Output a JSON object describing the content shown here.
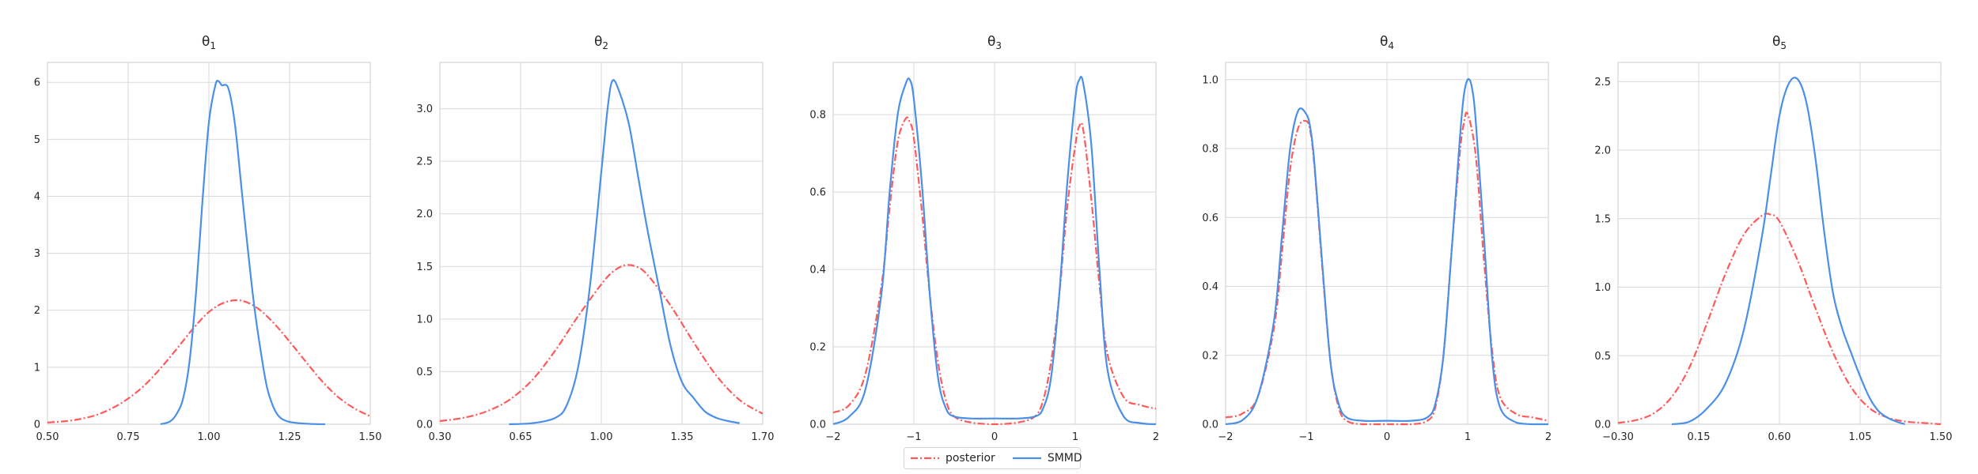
{
  "legend": {
    "entries": [
      {
        "label": "posterior",
        "color": "#ff5a5a",
        "dash": "dashdot"
      },
      {
        "label": "SMMD",
        "color": "#4a8fe8",
        "dash": "solid"
      }
    ]
  },
  "chart_data": [
    {
      "type": "line",
      "title": "θ1",
      "title_base": "θ",
      "title_sub": "1",
      "xlim": [
        0.5,
        1.5
      ],
      "ylim": [
        0,
        6.35
      ],
      "xticks": [
        0.5,
        0.75,
        1.0,
        1.25,
        1.5
      ],
      "xtick_labels": [
        "0.50",
        "0.75",
        "1.00",
        "1.25",
        "1.50"
      ],
      "yticks": [
        0,
        1,
        2,
        3,
        4,
        5,
        6
      ],
      "ytick_labels": [
        "0",
        "1",
        "2",
        "3",
        "4",
        "5",
        "6"
      ],
      "grid": true,
      "series": [
        {
          "name": "posterior",
          "color": "#ff5a5a",
          "dash": "dashdot",
          "x": [
            0.5,
            0.55,
            0.6,
            0.65,
            0.7,
            0.75,
            0.8,
            0.85,
            0.9,
            0.95,
            1.0,
            1.05,
            1.1,
            1.15,
            1.2,
            1.25,
            1.3,
            1.35,
            1.4,
            1.45,
            1.5
          ],
          "y": [
            0.03,
            0.05,
            0.09,
            0.16,
            0.28,
            0.45,
            0.68,
            0.98,
            1.32,
            1.67,
            1.97,
            2.14,
            2.17,
            2.04,
            1.78,
            1.45,
            1.1,
            0.76,
            0.48,
            0.28,
            0.14
          ]
        },
        {
          "name": "SMMD",
          "color": "#4a8fe8",
          "dash": "solid",
          "x": [
            0.85,
            0.88,
            0.9,
            0.92,
            0.94,
            0.96,
            0.98,
            1.0,
            1.02,
            1.03,
            1.04,
            1.06,
            1.08,
            1.1,
            1.12,
            1.14,
            1.16,
            1.18,
            1.2,
            1.22,
            1.25,
            1.3,
            1.36
          ],
          "y": [
            0.0,
            0.05,
            0.18,
            0.45,
            1.1,
            2.3,
            3.9,
            5.3,
            5.95,
            6.02,
            5.95,
            5.9,
            5.3,
            4.2,
            3.1,
            2.1,
            1.3,
            0.65,
            0.3,
            0.12,
            0.04,
            0.01,
            0.0
          ]
        }
      ]
    },
    {
      "type": "line",
      "title": "θ2",
      "title_base": "θ",
      "title_sub": "2",
      "xlim": [
        0.3,
        1.7
      ],
      "ylim": [
        0,
        3.44
      ],
      "xticks": [
        0.3,
        0.65,
        1.0,
        1.35,
        1.7
      ],
      "xtick_labels": [
        "0.30",
        "0.65",
        "1.00",
        "1.35",
        "1.70"
      ],
      "yticks": [
        0,
        0.5,
        1.0,
        1.5,
        2.0,
        2.5,
        3.0
      ],
      "ytick_labels": [
        "0.0",
        "0.5",
        "1.0",
        "1.5",
        "2.0",
        "2.5",
        "3.0"
      ],
      "grid": true,
      "series": [
        {
          "name": "posterior",
          "color": "#ff5a5a",
          "dash": "dashdot",
          "x": [
            0.3,
            0.4,
            0.5,
            0.6,
            0.7,
            0.8,
            0.9,
            1.0,
            1.05,
            1.1,
            1.15,
            1.2,
            1.3,
            1.4,
            1.5,
            1.6,
            1.7
          ],
          "y": [
            0.03,
            0.06,
            0.12,
            0.23,
            0.42,
            0.7,
            1.03,
            1.33,
            1.45,
            1.51,
            1.5,
            1.42,
            1.13,
            0.78,
            0.46,
            0.23,
            0.1
          ]
        },
        {
          "name": "SMMD",
          "color": "#4a8fe8",
          "dash": "solid",
          "x": [
            0.6,
            0.7,
            0.8,
            0.85,
            0.9,
            0.95,
            1.0,
            1.03,
            1.05,
            1.08,
            1.12,
            1.16,
            1.2,
            1.25,
            1.3,
            1.35,
            1.4,
            1.45,
            1.5,
            1.55,
            1.6
          ],
          "y": [
            0.0,
            0.01,
            0.06,
            0.18,
            0.55,
            1.3,
            2.4,
            3.05,
            3.27,
            3.15,
            2.85,
            2.35,
            1.85,
            1.3,
            0.75,
            0.4,
            0.25,
            0.12,
            0.06,
            0.03,
            0.01
          ]
        }
      ]
    },
    {
      "type": "line",
      "title": "θ3",
      "title_base": "θ",
      "title_sub": "3",
      "xlim": [
        -2,
        2
      ],
      "ylim": [
        0,
        0.935
      ],
      "xticks": [
        -2,
        -1,
        0,
        1,
        2
      ],
      "xtick_labels": [
        "−2",
        "−1",
        "0",
        "1",
        "2"
      ],
      "yticks": [
        0,
        0.2,
        0.4,
        0.6,
        0.8
      ],
      "ytick_labels": [
        "0.0",
        "0.2",
        "0.4",
        "0.6",
        "0.8"
      ],
      "grid": true,
      "series": [
        {
          "name": "posterior",
          "color": "#ff5a5a",
          "dash": "dashdot",
          "x": [
            -2,
            -1.8,
            -1.6,
            -1.4,
            -1.3,
            -1.2,
            -1.1,
            -1.05,
            -1.0,
            -0.9,
            -0.8,
            -0.7,
            -0.6,
            -0.5,
            -0.3,
            0,
            0.3,
            0.5,
            0.6,
            0.7,
            0.8,
            0.9,
            1.0,
            1.05,
            1.1,
            1.2,
            1.3,
            1.4,
            1.6,
            1.8,
            2.0
          ],
          "y": [
            0.03,
            0.05,
            0.13,
            0.36,
            0.56,
            0.73,
            0.79,
            0.78,
            0.74,
            0.55,
            0.33,
            0.16,
            0.06,
            0.02,
            0.005,
            0.0,
            0.005,
            0.02,
            0.06,
            0.16,
            0.33,
            0.56,
            0.72,
            0.77,
            0.76,
            0.58,
            0.36,
            0.18,
            0.07,
            0.05,
            0.04
          ]
        },
        {
          "name": "SMMD",
          "color": "#4a8fe8",
          "dash": "solid",
          "x": [
            -2,
            -1.8,
            -1.6,
            -1.4,
            -1.3,
            -1.2,
            -1.1,
            -1.05,
            -1.0,
            -0.9,
            -0.8,
            -0.7,
            -0.6,
            -0.5,
            -0.3,
            0,
            0.3,
            0.5,
            0.6,
            0.7,
            0.8,
            0.9,
            1.0,
            1.05,
            1.1,
            1.2,
            1.3,
            1.4,
            1.6,
            1.8,
            2.0
          ],
          "y": [
            0.0,
            0.02,
            0.09,
            0.34,
            0.6,
            0.8,
            0.88,
            0.89,
            0.84,
            0.62,
            0.33,
            0.12,
            0.04,
            0.02,
            0.015,
            0.015,
            0.015,
            0.02,
            0.04,
            0.12,
            0.33,
            0.62,
            0.84,
            0.89,
            0.88,
            0.72,
            0.4,
            0.14,
            0.02,
            0.003,
            0.0
          ]
        }
      ]
    },
    {
      "type": "line",
      "title": "θ4",
      "title_base": "θ",
      "title_sub": "4",
      "xlim": [
        -2,
        2
      ],
      "ylim": [
        0,
        1.05
      ],
      "xticks": [
        -2,
        -1,
        0,
        1,
        2
      ],
      "xtick_labels": [
        "−2",
        "−1",
        "0",
        "1",
        "2"
      ],
      "yticks": [
        0,
        0.2,
        0.4,
        0.6,
        0.8,
        1.0
      ],
      "ytick_labels": [
        "0.0",
        "0.2",
        "0.4",
        "0.6",
        "0.8",
        "1.0"
      ],
      "grid": true,
      "series": [
        {
          "name": "posterior",
          "color": "#ff5a5a",
          "dash": "dashdot",
          "x": [
            -2,
            -1.8,
            -1.6,
            -1.4,
            -1.3,
            -1.2,
            -1.1,
            -1.0,
            -0.95,
            -0.9,
            -0.8,
            -0.7,
            -0.6,
            -0.5,
            -0.3,
            0,
            0.3,
            0.5,
            0.6,
            0.7,
            0.8,
            0.9,
            0.95,
            1.0,
            1.1,
            1.2,
            1.3,
            1.4,
            1.6,
            1.8,
            2.0
          ],
          "y": [
            0.02,
            0.03,
            0.08,
            0.28,
            0.5,
            0.74,
            0.86,
            0.88,
            0.85,
            0.75,
            0.45,
            0.18,
            0.05,
            0.01,
            0.0,
            0.0,
            0.0,
            0.01,
            0.05,
            0.2,
            0.5,
            0.78,
            0.87,
            0.9,
            0.78,
            0.48,
            0.22,
            0.08,
            0.03,
            0.02,
            0.01
          ]
        },
        {
          "name": "SMMD",
          "color": "#4a8fe8",
          "dash": "solid",
          "x": [
            -2,
            -1.8,
            -1.6,
            -1.4,
            -1.3,
            -1.2,
            -1.1,
            -1.0,
            -0.95,
            -0.9,
            -0.8,
            -0.7,
            -0.6,
            -0.5,
            -0.3,
            0,
            0.3,
            0.5,
            0.6,
            0.7,
            0.8,
            0.9,
            0.95,
            1.0,
            1.05,
            1.1,
            1.2,
            1.3,
            1.4,
            1.6,
            1.8,
            2.0
          ],
          "y": [
            0.0,
            0.01,
            0.08,
            0.3,
            0.55,
            0.8,
            0.91,
            0.9,
            0.86,
            0.76,
            0.46,
            0.18,
            0.06,
            0.02,
            0.01,
            0.01,
            0.01,
            0.02,
            0.06,
            0.2,
            0.5,
            0.82,
            0.95,
            1.0,
            0.98,
            0.88,
            0.55,
            0.2,
            0.05,
            0.005,
            0.0,
            0.0
          ]
        }
      ]
    },
    {
      "type": "line",
      "title": "θ5",
      "title_base": "θ",
      "title_sub": "5",
      "xlim": [
        -0.3,
        1.5
      ],
      "ylim": [
        0,
        2.64
      ],
      "xticks": [
        -0.3,
        0.15,
        0.6,
        1.05,
        1.5
      ],
      "xtick_labels": [
        "−0.30",
        "0.15",
        "0.60",
        "1.05",
        "1.50"
      ],
      "yticks": [
        0,
        0.5,
        1.0,
        1.5,
        2.0,
        2.5
      ],
      "ytick_labels": [
        "0.0",
        "0.5",
        "1.0",
        "1.5",
        "2.0",
        "2.5"
      ],
      "grid": true,
      "series": [
        {
          "name": "posterior",
          "color": "#ff5a5a",
          "dash": "dashdot",
          "x": [
            -0.3,
            -0.2,
            -0.1,
            0.0,
            0.1,
            0.2,
            0.3,
            0.4,
            0.5,
            0.55,
            0.6,
            0.7,
            0.8,
            0.9,
            1.0,
            1.1,
            1.2,
            1.3,
            1.4,
            1.5
          ],
          "y": [
            0.01,
            0.03,
            0.08,
            0.2,
            0.42,
            0.75,
            1.1,
            1.38,
            1.52,
            1.53,
            1.48,
            1.2,
            0.85,
            0.52,
            0.27,
            0.12,
            0.05,
            0.02,
            0.01,
            0.0
          ]
        },
        {
          "name": "SMMD",
          "color": "#4a8fe8",
          "dash": "solid",
          "x": [
            0.0,
            0.1,
            0.2,
            0.3,
            0.4,
            0.5,
            0.55,
            0.6,
            0.65,
            0.7,
            0.75,
            0.8,
            0.85,
            0.9,
            0.95,
            1.0,
            1.05,
            1.1,
            1.15,
            1.2,
            1.25,
            1.3
          ],
          "y": [
            0.0,
            0.02,
            0.12,
            0.3,
            0.68,
            1.35,
            1.8,
            2.25,
            2.48,
            2.52,
            2.35,
            1.95,
            1.4,
            0.95,
            0.7,
            0.52,
            0.35,
            0.2,
            0.1,
            0.05,
            0.02,
            0.0
          ]
        }
      ]
    }
  ]
}
